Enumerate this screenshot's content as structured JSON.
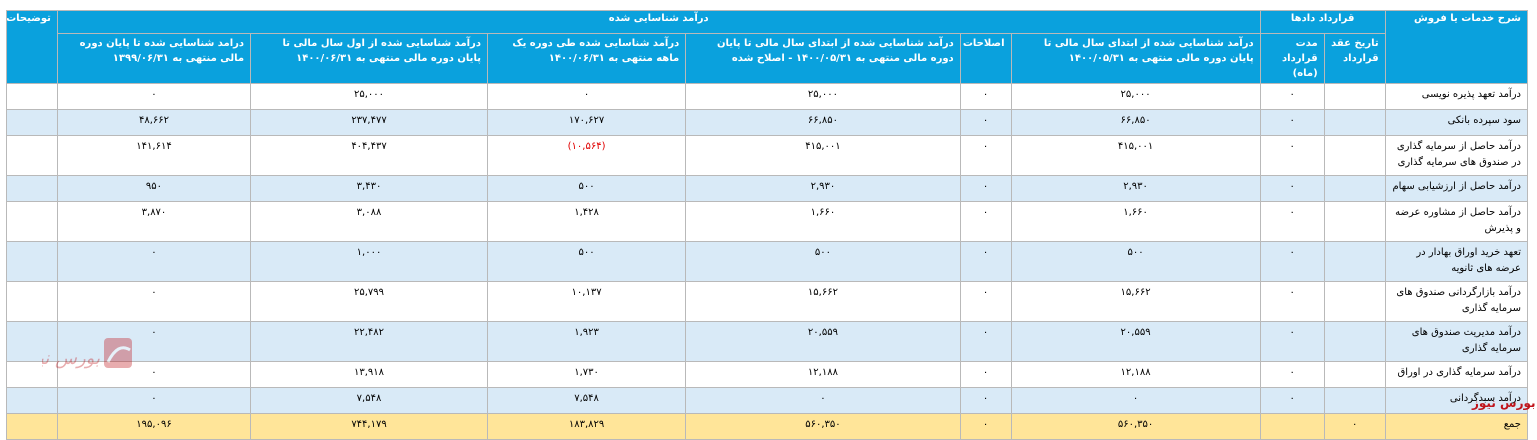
{
  "header": {
    "desc": "شرح خدمات یا فروش",
    "contracts": "قرارداد دادها",
    "contract_date": "تاریخ عقد قرارداد",
    "contract_term": "مدت قرارداد (ماه)",
    "recognized": "درآمد شناسایی شده",
    "notes": "توضیحات",
    "cols": [
      "درآمد شناسایی شده از ابتدای سال مالی تا پایان دوره مالی منتهی به ۱۴۰۰/۰۵/۳۱",
      "اصلاحات",
      "درآمد شناسایی شده از ابتدای سال مالی تا پایان دوره مالی منتهی به ۱۴۰۰/۰۵/۳۱ - اصلاح شده",
      "درآمد شناسایی شده طی دوره یک ماهه منتهی به ۱۴۰۰/۰۶/۳۱",
      "درآمد شناسایی شده از اول سال مالی تا پایان دوره مالی منتهی به ۱۴۰۰/۰۶/۳۱",
      "درامد شناسایی شده تا پایان دوره مالی منتهی به ۱۳۹۹/۰۶/۳۱"
    ]
  },
  "rows": [
    {
      "label": "درآمد تعهد پذیره نویسی",
      "c1": "٠",
      "c2": "۲۵,۰۰۰",
      "c3": "٠",
      "c4": "۲۵,۰۰۰",
      "c5": "٠",
      "c6": "۲۵,۰۰۰",
      "c7": "٠"
    },
    {
      "label": "سود سپرده بانکی",
      "c1": "٠",
      "c2": "۶۶,۸۵۰",
      "c3": "٠",
      "c4": "۶۶,۸۵۰",
      "c5": "۱۷۰,۶۲۷",
      "c6": "۲۳۷,۴۷۷",
      "c7": "۴۸,۶۶۲"
    },
    {
      "label": "درآمد حاصل از سرمایه گذاری در صندوق های سرمایه گذاری",
      "c1": "٠",
      "c2": "۴۱۵,۰۰۱",
      "c3": "٠",
      "c4": "۴۱۵,۰۰۱",
      "c5": "(۱۰,۵۶۴)",
      "c6": "۴۰۴,۴۳۷",
      "c7": "۱۴۱,۶۱۴",
      "neg5": true
    },
    {
      "label": "درآمد حاصل از ارزشیابی سهام",
      "c1": "٠",
      "c2": "۲,۹۳۰",
      "c3": "٠",
      "c4": "۲,۹۳۰",
      "c5": "۵۰۰",
      "c6": "۳,۴۳۰",
      "c7": "۹۵۰"
    },
    {
      "label": "درآمد حاصل از مشاوره عرضه و پذیرش",
      "c1": "٠",
      "c2": "۱,۶۶۰",
      "c3": "٠",
      "c4": "۱,۶۶۰",
      "c5": "۱,۴۲۸",
      "c6": "۳,۰۸۸",
      "c7": "۳,۸۷۰"
    },
    {
      "label": "تعهد خرید اوراق بهادار در عرضه های ثانویه",
      "c1": "٠",
      "c2": "۵۰۰",
      "c3": "٠",
      "c4": "۵۰۰",
      "c5": "۵۰۰",
      "c6": "۱,۰۰۰",
      "c7": "٠"
    },
    {
      "label": "درآمد بازارگردانی صندوق های سرمایه گذاری",
      "c1": "٠",
      "c2": "۱۵,۶۶۲",
      "c3": "٠",
      "c4": "۱۵,۶۶۲",
      "c5": "۱۰,۱۳۷",
      "c6": "۲۵,۷۹۹",
      "c7": "٠"
    },
    {
      "label": "درآمد مدیریت صندوق های سرمایه گذاری",
      "c1": "٠",
      "c2": "۲۰,۵۵۹",
      "c3": "٠",
      "c4": "۲۰,۵۵۹",
      "c5": "۱,۹۲۳",
      "c6": "۲۲,۴۸۲",
      "c7": "٠"
    },
    {
      "label": "درآمد سرمایه گذاری در اوراق",
      "c1": "٠",
      "c2": "۱۲,۱۸۸",
      "c3": "٠",
      "c4": "۱۲,۱۸۸",
      "c5": "۱,۷۳۰",
      "c6": "۱۳,۹۱۸",
      "c7": "٠"
    },
    {
      "label": "درآمد سبدگردانی",
      "c1": "٠",
      "c2": "٠",
      "c3": "٠",
      "c4": "٠",
      "c5": "۷,۵۴۸",
      "c6": "۷,۵۴۸",
      "c7": "٠"
    }
  ],
  "total": {
    "label": "جمع",
    "c1": "٠",
    "c2": "۵۶۰,۳۵۰",
    "c3": "٠",
    "c4": "۵۶۰,۳۵۰",
    "c5": "۱۸۳,۸۲۹",
    "c6": "۷۴۴,۱۷۹",
    "c7": "۱۹۵,۰۹۶"
  },
  "watermark": "بورس نیوز",
  "colors": {
    "header": "#0aa1dd",
    "row_alt": "#d9eaf7",
    "total": "#ffe599",
    "negative": "#e00000",
    "logo": "#c0141b"
  }
}
